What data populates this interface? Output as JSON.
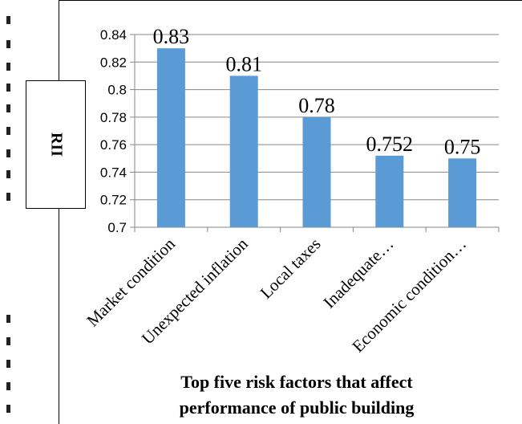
{
  "chart_data": {
    "type": "bar",
    "title": "Top five risk factors that affect performance of  public building",
    "ylabel": "RII",
    "xlabel": "",
    "categories": [
      "Market condition",
      "Unexpected inflation",
      "Local taxes",
      "Inadequate…",
      "Economic condition…"
    ],
    "values": [
      0.83,
      0.81,
      0.78,
      0.752,
      0.75
    ],
    "data_labels": [
      "0.83",
      "0.81",
      "0.78",
      "0.752",
      "0.75"
    ],
    "ylim": [
      0.7,
      0.84
    ],
    "yticks": [
      "0.7",
      "0.72",
      "0.74",
      "0.76",
      "0.78",
      "0.8",
      "0.82",
      "0.84"
    ],
    "grid": true,
    "bar_color": "#5B9BD5"
  },
  "caption": {
    "line1": "Top five risk factors that affect",
    "line2": "performance of  public building"
  }
}
